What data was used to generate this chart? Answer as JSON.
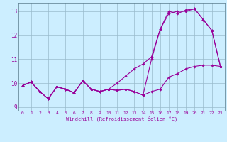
{
  "xlabel": "Windchill (Refroidissement éolien,°C)",
  "bg_color": "#cceeff",
  "line_color": "#990099",
  "grid_color": "#99bbcc",
  "xlim": [
    -0.5,
    23.5
  ],
  "ylim": [
    8.85,
    13.35
  ],
  "xticks": [
    0,
    1,
    2,
    3,
    4,
    5,
    6,
    7,
    8,
    9,
    10,
    11,
    12,
    13,
    14,
    15,
    16,
    17,
    18,
    19,
    20,
    21,
    22,
    23
  ],
  "yticks": [
    9,
    10,
    11,
    12,
    13
  ],
  "curve1_x": [
    0,
    1,
    2,
    3,
    4,
    5,
    6,
    7,
    8,
    9,
    10,
    11,
    12,
    13,
    14,
    15,
    16,
    17,
    18,
    19,
    20,
    21,
    22,
    23
  ],
  "curve1_y": [
    9.9,
    10.05,
    9.65,
    9.35,
    9.85,
    9.75,
    9.6,
    10.1,
    9.75,
    9.65,
    9.75,
    9.7,
    9.75,
    9.65,
    9.5,
    9.65,
    9.75,
    10.25,
    10.4,
    10.6,
    10.7,
    10.75,
    10.75,
    10.7
  ],
  "curve2_x": [
    0,
    1,
    2,
    3,
    4,
    5,
    6,
    7,
    8,
    9,
    10,
    11,
    12,
    13,
    14,
    15,
    16,
    17,
    18,
    19,
    20,
    21,
    22,
    23
  ],
  "curve2_y": [
    9.9,
    10.05,
    9.65,
    9.35,
    9.85,
    9.75,
    9.6,
    10.1,
    9.75,
    9.65,
    9.75,
    9.7,
    9.75,
    9.65,
    9.5,
    11.0,
    12.25,
    13.0,
    12.9,
    13.05,
    13.1,
    12.65,
    12.2,
    10.7
  ],
  "curve3_x": [
    0,
    1,
    2,
    3,
    4,
    5,
    6,
    7,
    8,
    9,
    10,
    11,
    12,
    13,
    14,
    15,
    16,
    17,
    18,
    19,
    20,
    21,
    22,
    23
  ],
  "curve3_y": [
    9.9,
    10.05,
    9.65,
    9.35,
    9.85,
    9.75,
    9.6,
    10.1,
    9.75,
    9.65,
    9.75,
    10.0,
    10.3,
    10.6,
    10.8,
    11.1,
    12.25,
    12.9,
    13.0,
    13.0,
    13.1,
    12.65,
    12.2,
    10.7
  ],
  "marker": "D",
  "marker_size": 1.8,
  "linewidth": 0.8
}
